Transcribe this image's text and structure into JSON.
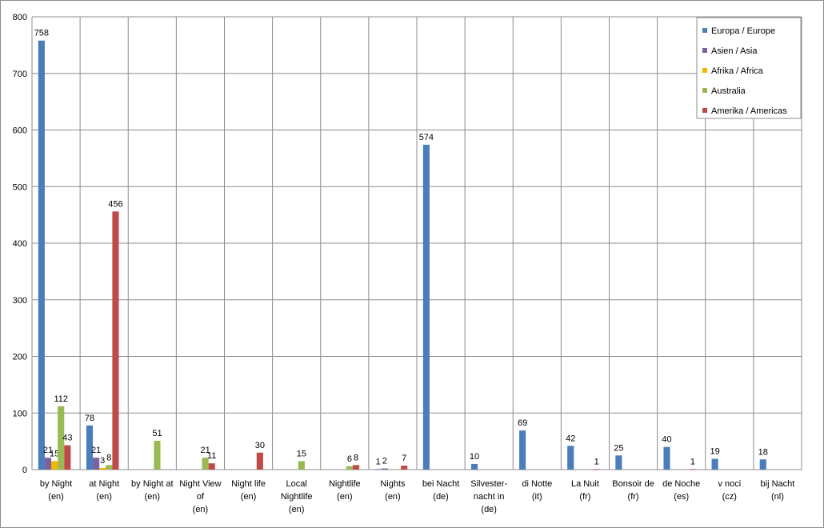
{
  "chart_data": {
    "type": "bar",
    "categories": [
      "by Night\n(en)",
      "at Night\n(en)",
      "by Night at\n(en)",
      "Night View\nof\n(en)",
      "Night life\n(en)",
      "Local\nNightlife\n(en)",
      "Nightlife\n(en)",
      "Nights\n(en)",
      "bei Nacht\n(de)",
      "Silvester-\nnacht in\n(de)",
      "di Notte\n(it)",
      "La Nuit\n(fr)",
      "Bonsoir de\n(fr)",
      "de Noche\n(es)",
      "v noci\n(cz)",
      "bij Nacht\n(nl)"
    ],
    "series": [
      {
        "name": "Europa / Europe",
        "color": "#4a7ebb",
        "values": [
          758,
          78,
          null,
          null,
          null,
          null,
          null,
          1,
          574,
          10,
          69,
          42,
          25,
          40,
          19,
          18
        ]
      },
      {
        "name": "Asien / Asia",
        "color": "#7d5fa0",
        "values": [
          21,
          21,
          null,
          null,
          null,
          null,
          null,
          2,
          null,
          null,
          null,
          null,
          null,
          null,
          null,
          null
        ]
      },
      {
        "name": "Afrika / Africa",
        "color": "#f0b800",
        "values": [
          15,
          3,
          null,
          null,
          null,
          null,
          null,
          null,
          null,
          null,
          null,
          null,
          null,
          null,
          null,
          null
        ]
      },
      {
        "name": "Australia",
        "color": "#98b954",
        "values": [
          112,
          8,
          51,
          21,
          null,
          15,
          6,
          null,
          null,
          null,
          null,
          null,
          null,
          null,
          null,
          null
        ]
      },
      {
        "name": "Amerika / Americas",
        "color": "#be4b48",
        "values": [
          43,
          456,
          null,
          11,
          30,
          null,
          8,
          7,
          null,
          null,
          null,
          1,
          null,
          1,
          null,
          null
        ]
      }
    ],
    "ylim": [
      0,
      800
    ],
    "yticks": [
      0,
      100,
      200,
      300,
      400,
      500,
      600,
      700,
      800
    ],
    "grid": true,
    "legend": "top-right"
  }
}
